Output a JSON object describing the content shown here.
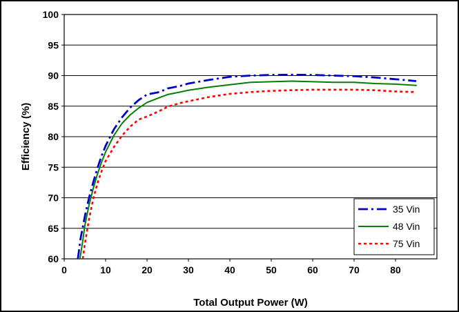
{
  "chart_data": {
    "type": "line",
    "title": "",
    "xlabel": "Total Output Power (W)",
    "ylabel": "Efficiency (%)",
    "xlim": [
      0,
      90
    ],
    "ylim": [
      60,
      100
    ],
    "x_ticks": [
      0,
      10,
      20,
      30,
      40,
      50,
      60,
      70,
      80
    ],
    "y_ticks": [
      60,
      65,
      70,
      75,
      80,
      85,
      90,
      95,
      100
    ],
    "x_tick_labels": [
      "0",
      "10",
      "20",
      "30",
      "40",
      "50",
      "60",
      "70",
      "80"
    ],
    "y_tick_labels": [
      "60",
      "65",
      "70",
      "75",
      "80",
      "85",
      "90",
      "95",
      "100"
    ],
    "grid": "horizontal",
    "legend_position": "bottom-right",
    "series": [
      {
        "name": "35 Vin",
        "color": "#0000CC",
        "line_style": "dash-dot",
        "x": [
          3.3,
          4,
          5,
          6,
          7,
          8,
          9,
          10,
          12,
          14,
          16,
          18,
          20,
          23,
          25,
          28,
          30,
          35,
          40,
          45,
          50,
          55,
          60,
          65,
          70,
          75,
          80,
          85
        ],
        "y": [
          60,
          63.5,
          67,
          70,
          72.5,
          74.8,
          76.8,
          78.5,
          81.2,
          83.2,
          84.8,
          86,
          86.9,
          87.3,
          87.9,
          88.3,
          88.7,
          89.3,
          89.8,
          90.0,
          90.1,
          90.15,
          90.1,
          90.0,
          89.9,
          89.7,
          89.4,
          89.1
        ]
      },
      {
        "name": "48 Vin",
        "color": "#008000",
        "line_style": "solid",
        "x": [
          3.8,
          4.5,
          5,
          6,
          7,
          8,
          9,
          10,
          12,
          14,
          16,
          18,
          20,
          23,
          25,
          28,
          30,
          35,
          40,
          45,
          50,
          55,
          60,
          65,
          70,
          75,
          80,
          85
        ],
        "y": [
          60,
          63,
          65.5,
          68.8,
          71.5,
          73.8,
          75.8,
          77.5,
          80.2,
          82.2,
          83.6,
          84.7,
          85.6,
          86.4,
          86.9,
          87.3,
          87.6,
          88.1,
          88.5,
          88.9,
          89.0,
          89.1,
          89.0,
          88.9,
          88.9,
          88.7,
          88.6,
          88.4
        ]
      },
      {
        "name": "75 Vin",
        "color": "#FF0000",
        "line_style": "dotted",
        "x": [
          4.5,
          5,
          6,
          7,
          8,
          9,
          10,
          12,
          14,
          16,
          18,
          20,
          23,
          25,
          28,
          30,
          35,
          40,
          45,
          50,
          55,
          60,
          65,
          70,
          75,
          80,
          85
        ],
        "y": [
          60,
          62.5,
          66.5,
          69.8,
          72.3,
          74.3,
          76,
          78.3,
          80.2,
          81.7,
          82.8,
          83.3,
          84.2,
          84.9,
          85.5,
          85.8,
          86.5,
          87.0,
          87.3,
          87.5,
          87.6,
          87.7,
          87.7,
          87.7,
          87.6,
          87.4,
          87.3
        ]
      }
    ]
  }
}
